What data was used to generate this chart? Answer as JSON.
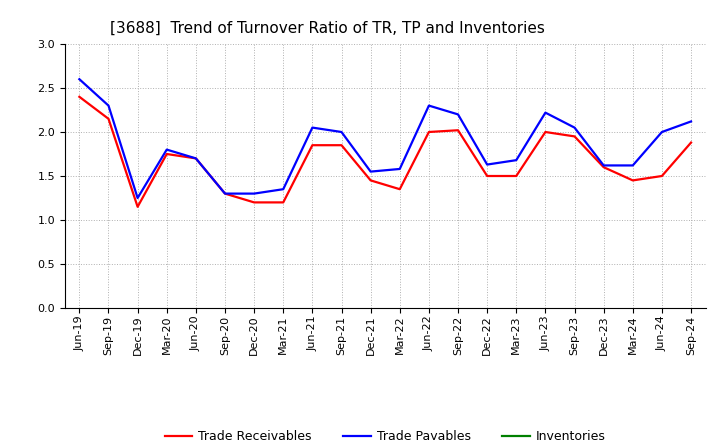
{
  "title": "[3688]  Trend of Turnover Ratio of TR, TP and Inventories",
  "labels": [
    "Jun-19",
    "Sep-19",
    "Dec-19",
    "Mar-20",
    "Jun-20",
    "Sep-20",
    "Dec-20",
    "Mar-21",
    "Jun-21",
    "Sep-21",
    "Dec-21",
    "Mar-22",
    "Jun-22",
    "Sep-22",
    "Dec-22",
    "Mar-23",
    "Jun-23",
    "Sep-23",
    "Dec-23",
    "Mar-24",
    "Jun-24",
    "Sep-24"
  ],
  "trade_receivables": [
    2.4,
    2.15,
    1.15,
    1.75,
    1.7,
    1.3,
    1.2,
    1.2,
    1.85,
    1.85,
    1.45,
    1.35,
    2.0,
    2.02,
    1.5,
    1.5,
    2.0,
    1.95,
    1.6,
    1.45,
    1.5,
    1.88
  ],
  "trade_payables": [
    2.6,
    2.3,
    1.25,
    1.8,
    1.7,
    1.3,
    1.3,
    1.35,
    2.05,
    2.0,
    1.55,
    1.58,
    2.3,
    2.2,
    1.63,
    1.68,
    2.22,
    2.05,
    1.62,
    1.62,
    2.0,
    2.12
  ],
  "inventories": [
    null,
    null,
    null,
    null,
    null,
    null,
    null,
    null,
    null,
    null,
    null,
    null,
    null,
    null,
    null,
    null,
    null,
    null,
    null,
    null,
    null,
    null
  ],
  "tr_color": "#ff0000",
  "tp_color": "#0000ff",
  "inv_color": "#008000",
  "ylim": [
    0.0,
    3.0
  ],
  "yticks": [
    0.0,
    0.5,
    1.0,
    1.5,
    2.0,
    2.5,
    3.0
  ],
  "background_color": "#ffffff",
  "grid_color": "#b0b0b0",
  "title_fontsize": 11,
  "legend_fontsize": 9,
  "tick_fontsize": 8
}
